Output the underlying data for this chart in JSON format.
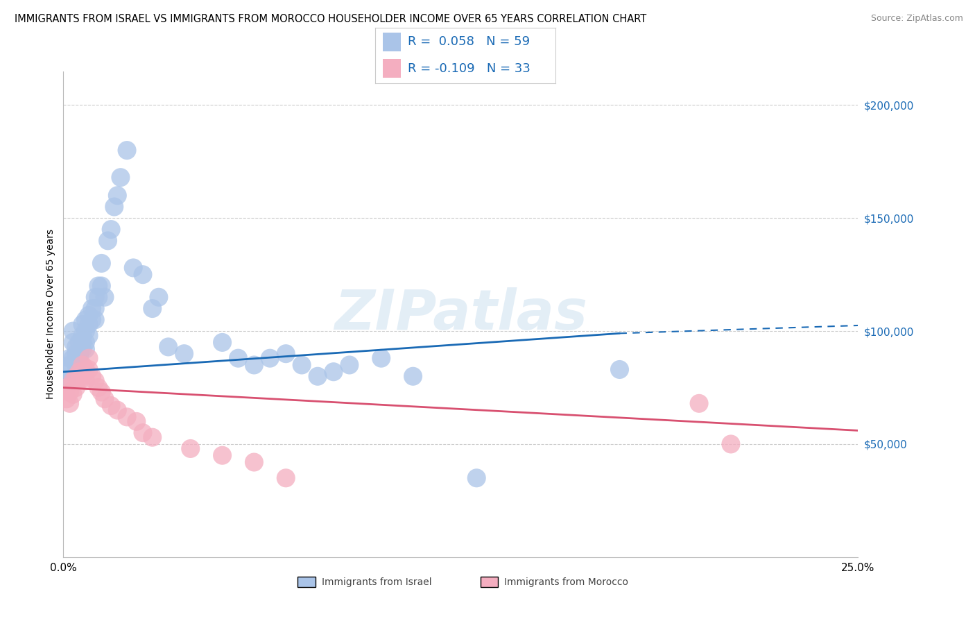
{
  "title": "IMMIGRANTS FROM ISRAEL VS IMMIGRANTS FROM MOROCCO HOUSEHOLDER INCOME OVER 65 YEARS CORRELATION CHART",
  "source": "Source: ZipAtlas.com",
  "ylabel": "Householder Income Over 65 years",
  "xlim": [
    0.0,
    0.25
  ],
  "ylim": [
    0,
    215000
  ],
  "yticks": [
    50000,
    100000,
    150000,
    200000
  ],
  "ytick_labels": [
    "$50,000",
    "$100,000",
    "$150,000",
    "$200,000"
  ],
  "watermark": "ZIPatlas",
  "legend_R_israel": "R =  0.058",
  "legend_N_israel": "N = 59",
  "legend_R_morocco": "R = -0.109",
  "legend_N_morocco": "N = 33",
  "color_israel": "#aac4e8",
  "color_morocco": "#f4aec0",
  "line_color_israel": "#1a6ab5",
  "line_color_morocco": "#d85070",
  "axis_color": "#bbbbbb",
  "grid_color": "#cccccc",
  "title_fontsize": 10.5,
  "source_fontsize": 9,
  "label_fontsize": 10,
  "legend_fontsize": 13,
  "israel_x": [
    0.001,
    0.001,
    0.002,
    0.002,
    0.003,
    0.003,
    0.003,
    0.004,
    0.004,
    0.004,
    0.005,
    0.005,
    0.005,
    0.006,
    0.006,
    0.006,
    0.006,
    0.007,
    0.007,
    0.007,
    0.007,
    0.008,
    0.008,
    0.008,
    0.009,
    0.009,
    0.01,
    0.01,
    0.01,
    0.011,
    0.011,
    0.012,
    0.012,
    0.013,
    0.014,
    0.015,
    0.016,
    0.017,
    0.018,
    0.02,
    0.022,
    0.025,
    0.028,
    0.03,
    0.033,
    0.038,
    0.05,
    0.055,
    0.06,
    0.065,
    0.07,
    0.075,
    0.08,
    0.085,
    0.09,
    0.1,
    0.11,
    0.13,
    0.175
  ],
  "israel_y": [
    83000,
    78000,
    88000,
    85000,
    100000,
    95000,
    88000,
    93000,
    90000,
    85000,
    88000,
    95000,
    90000,
    103000,
    98000,
    95000,
    92000,
    105000,
    100000,
    95000,
    92000,
    107000,
    103000,
    98000,
    110000,
    105000,
    115000,
    110000,
    105000,
    120000,
    115000,
    130000,
    120000,
    115000,
    140000,
    145000,
    155000,
    160000,
    168000,
    180000,
    128000,
    125000,
    110000,
    115000,
    93000,
    90000,
    95000,
    88000,
    85000,
    88000,
    90000,
    85000,
    80000,
    82000,
    85000,
    88000,
    80000,
    35000,
    83000
  ],
  "morocco_x": [
    0.001,
    0.001,
    0.002,
    0.002,
    0.003,
    0.003,
    0.004,
    0.004,
    0.005,
    0.005,
    0.006,
    0.006,
    0.007,
    0.007,
    0.008,
    0.008,
    0.009,
    0.01,
    0.011,
    0.012,
    0.013,
    0.015,
    0.017,
    0.02,
    0.023,
    0.025,
    0.028,
    0.04,
    0.05,
    0.06,
    0.07,
    0.2,
    0.21
  ],
  "morocco_y": [
    75000,
    70000,
    73000,
    68000,
    78000,
    72000,
    80000,
    75000,
    82000,
    78000,
    85000,
    80000,
    83000,
    78000,
    88000,
    83000,
    80000,
    78000,
    75000,
    73000,
    70000,
    67000,
    65000,
    62000,
    60000,
    55000,
    53000,
    48000,
    45000,
    42000,
    35000,
    68000,
    50000
  ],
  "line_israel_x0": 0.0,
  "line_israel_y0": 82000,
  "line_israel_x1": 0.175,
  "line_israel_y1": 99000,
  "line_dashed_x0": 0.175,
  "line_dashed_y0": 99000,
  "line_dashed_x1": 0.25,
  "line_dashed_y1": 102500,
  "line_morocco_x0": 0.0,
  "line_morocco_y0": 75000,
  "line_morocco_x1": 0.25,
  "line_morocco_y1": 56000
}
